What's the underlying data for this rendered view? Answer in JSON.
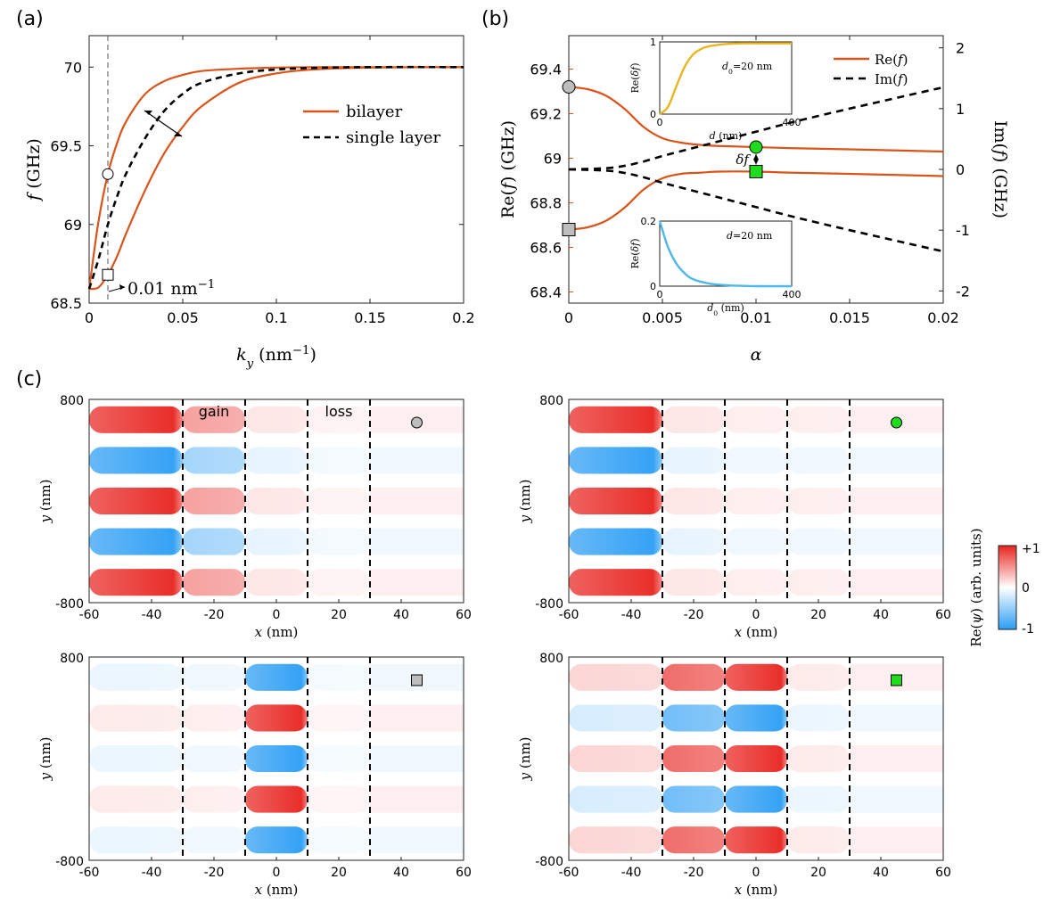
{
  "colors": {
    "bilayer": "#d9541a",
    "single": "#000000",
    "red": "#e8231e",
    "blue": "#2a9df4",
    "inset_yellow": "#ebb51e",
    "inset_cyan": "#4db8e8",
    "gray_marker": "#bdbdbd",
    "green_marker": "#1fdc1f",
    "re_axis_color": "#d9541a"
  },
  "panel_labels": {
    "a": "(a)",
    "b": "(b)",
    "c": "(c)"
  },
  "chart_data": [
    {
      "id": "a",
      "type": "line",
      "xlabel": "k_y (nm^-1)",
      "ylabel": "f (GHz)",
      "xlim": [
        0,
        0.2
      ],
      "ylim": [
        68.5,
        70.2
      ],
      "xticks": [
        0,
        0.05,
        0.1,
        0.15,
        0.2
      ],
      "xtick_labels": [
        "0",
        "0.05",
        "0.1",
        "0.15",
        "0.2"
      ],
      "yticks": [
        68.5,
        69,
        69.5,
        70
      ],
      "ytick_labels": [
        "68.5",
        "69",
        "69.5",
        "70"
      ],
      "series": [
        {
          "name": "bilayer",
          "style": "solid",
          "color": "#d9541a",
          "x": [
            0,
            0.005,
            0.01,
            0.015,
            0.02,
            0.03,
            0.04,
            0.05,
            0.06,
            0.08,
            0.1,
            0.12,
            0.15,
            0.2
          ],
          "y": [
            68.59,
            69.02,
            69.32,
            69.52,
            69.66,
            69.83,
            69.91,
            69.95,
            69.975,
            69.99,
            69.997,
            70.0,
            70.0,
            70.0
          ]
        },
        {
          "name": "bilayer",
          "style": "solid",
          "color": "#d9541a",
          "x": [
            0,
            0.005,
            0.01,
            0.015,
            0.02,
            0.03,
            0.04,
            0.05,
            0.06,
            0.08,
            0.1,
            0.12,
            0.15,
            0.2
          ],
          "y": [
            68.59,
            68.6,
            68.68,
            68.8,
            68.95,
            69.22,
            69.45,
            69.62,
            69.75,
            69.9,
            69.96,
            69.985,
            69.997,
            70.0
          ]
        },
        {
          "name": "single layer",
          "style": "dashed",
          "color": "#000000",
          "x": [
            0,
            0.005,
            0.01,
            0.015,
            0.02,
            0.03,
            0.04,
            0.05,
            0.06,
            0.08,
            0.1,
            0.12,
            0.15,
            0.2
          ],
          "y": [
            68.59,
            68.78,
            69.0,
            69.18,
            69.33,
            69.55,
            69.72,
            69.83,
            69.9,
            69.96,
            69.985,
            69.995,
            70.0,
            70.0
          ]
        }
      ],
      "markers": [
        {
          "shape": "circle",
          "x": 0.01,
          "y": 69.32,
          "color": "#ffffff"
        },
        {
          "shape": "square",
          "x": 0.01,
          "y": 68.68,
          "color": "#ffffff"
        }
      ],
      "vline_x": 0.01,
      "annotation": "0.01 nm^-1",
      "legend": [
        "bilayer",
        "single layer"
      ]
    },
    {
      "id": "b",
      "type": "line",
      "xlabel": "α",
      "ylabel_left": "Re(f) (GHz)",
      "ylabel_right": "Im(f) (GHz)",
      "xlim": [
        0,
        0.02
      ],
      "ylim_left": [
        68.35,
        69.55
      ],
      "ylim_right": [
        -2.2,
        2.2
      ],
      "xticks": [
        0,
        0.005,
        0.01,
        0.015,
        0.02
      ],
      "xtick_labels": [
        "0",
        "0.005",
        "0.01",
        "0.015",
        "0.02"
      ],
      "yticks_left": [
        68.4,
        68.6,
        68.8,
        69,
        69.2,
        69.4
      ],
      "ytick_labels_left": [
        "68.4",
        "68.6",
        "68.8",
        "69",
        "69.2",
        "69.4"
      ],
      "yticks_right": [
        -2,
        -1,
        0,
        1,
        2
      ],
      "ytick_labels_right": [
        "-2",
        "-1",
        "0",
        "1",
        "2"
      ],
      "series": [
        {
          "name": "Re(f)",
          "axis": "left",
          "style": "solid",
          "color": "#d9541a",
          "x": [
            0,
            0.001,
            0.002,
            0.003,
            0.004,
            0.005,
            0.006,
            0.007,
            0.008,
            0.01,
            0.012,
            0.015,
            0.02
          ],
          "y": [
            69.32,
            69.31,
            69.28,
            69.22,
            69.14,
            69.09,
            69.07,
            69.06,
            69.055,
            69.05,
            69.045,
            69.04,
            69.03
          ]
        },
        {
          "name": "Re(f)",
          "axis": "left",
          "style": "solid",
          "color": "#d9541a",
          "x": [
            0,
            0.001,
            0.002,
            0.003,
            0.004,
            0.005,
            0.006,
            0.007,
            0.008,
            0.01,
            0.012,
            0.015,
            0.02
          ],
          "y": [
            68.68,
            68.69,
            68.72,
            68.78,
            68.86,
            68.91,
            68.93,
            68.935,
            68.94,
            68.94,
            68.935,
            68.93,
            68.92
          ]
        },
        {
          "name": "Im(f)",
          "axis": "right",
          "style": "dashed",
          "color": "#000000",
          "x": [
            0,
            0.002,
            0.003,
            0.004,
            0.005,
            0.006,
            0.008,
            0.01,
            0.012,
            0.015,
            0.02
          ],
          "y": [
            0,
            0.02,
            0.06,
            0.13,
            0.22,
            0.3,
            0.46,
            0.62,
            0.78,
            1.0,
            1.35
          ]
        },
        {
          "name": "Im(f)",
          "axis": "right",
          "style": "dashed",
          "color": "#000000",
          "x": [
            0,
            0.002,
            0.003,
            0.004,
            0.005,
            0.006,
            0.008,
            0.01,
            0.012,
            0.015,
            0.02
          ],
          "y": [
            0,
            -0.02,
            -0.06,
            -0.13,
            -0.22,
            -0.3,
            -0.46,
            -0.62,
            -0.78,
            -1.0,
            -1.35
          ]
        }
      ],
      "markers": [
        {
          "shape": "circle",
          "x": 0,
          "y": 69.32,
          "color": "#bdbdbd"
        },
        {
          "shape": "square",
          "x": 0,
          "y": 68.68,
          "color": "#bdbdbd"
        },
        {
          "shape": "circle",
          "x": 0.01,
          "y": 69.05,
          "color": "#1fdc1f"
        },
        {
          "shape": "square",
          "x": 0.01,
          "y": 68.94,
          "color": "#1fdc1f"
        }
      ],
      "delta_label": "δf",
      "legend": [
        "Re(f)",
        "Im(f)"
      ],
      "insets": [
        {
          "id": "b-inset-top",
          "xlabel": "d (nm)",
          "ylabel": "Re(δf)",
          "xlim": [
            0,
            400
          ],
          "ylim": [
            0,
            1
          ],
          "xticks": [
            0,
            400
          ],
          "xtick_labels": [
            "0",
            "400"
          ],
          "yticks": [
            0,
            1
          ],
          "ytick_labels": [
            "0",
            "1"
          ],
          "label": "d_0=20 nm",
          "color": "#ebb51e",
          "x": [
            0,
            25,
            50,
            75,
            100,
            125,
            150,
            200,
            250,
            300,
            400
          ],
          "y": [
            0,
            0.1,
            0.38,
            0.65,
            0.82,
            0.9,
            0.94,
            0.97,
            0.98,
            0.98,
            0.98
          ]
        },
        {
          "id": "b-inset-bottom",
          "xlabel": "d_0 (nm)",
          "ylabel": "Re(δf)",
          "xlim": [
            0,
            400
          ],
          "ylim": [
            0,
            0.2
          ],
          "xticks": [
            0,
            400
          ],
          "xtick_labels": [
            "0",
            "400"
          ],
          "yticks": [
            0,
            0.2
          ],
          "ytick_labels": [
            "0",
            "0.2"
          ],
          "label": "d=20 nm",
          "color": "#4db8e8",
          "x": [
            0,
            25,
            50,
            75,
            100,
            150,
            200,
            250,
            300,
            400
          ],
          "y": [
            0.2,
            0.12,
            0.07,
            0.04,
            0.022,
            0.008,
            0.003,
            0.001,
            0.0,
            0.0
          ]
        }
      ]
    },
    {
      "id": "c",
      "type": "heatmap",
      "xlabel": "x (nm)",
      "ylabel": "y (nm)",
      "xlim": [
        -60,
        60
      ],
      "ylim": [
        -800,
        800
      ],
      "xticks": [
        -60,
        -40,
        -20,
        0,
        20,
        40,
        60
      ],
      "xtick_labels": [
        "-60",
        "-40",
        "-20",
        "0",
        "20",
        "40",
        "60"
      ],
      "ytick_labels": [
        "-800",
        "800"
      ],
      "boundaries_x": [
        -30,
        -10,
        10,
        30
      ],
      "region_labels": [
        "gain",
        "loss"
      ],
      "colorbar": {
        "label": "Re(ψ) (arb. units)",
        "ticks": [
          "+1",
          "0",
          "-1"
        ]
      },
      "maps": [
        {
          "id": "c-tl",
          "marker": "circle",
          "marker_color": "#bdbdbd",
          "layer_amp": [
            1.0,
            0.45,
            0.12,
            0.06
          ],
          "phase": 0,
          "peak_x": -33
        },
        {
          "id": "c-tr",
          "marker": "circle",
          "marker_color": "#1fdc1f",
          "layer_amp": [
            1.0,
            0.12,
            0.08,
            0.08
          ],
          "phase": 0,
          "peak_x": -33
        },
        {
          "id": "c-bl",
          "marker": "square",
          "marker_color": "#bdbdbd",
          "layer_amp": [
            0.1,
            0.08,
            1.0,
            0.05
          ],
          "phase": 1,
          "peak_x": 8
        },
        {
          "id": "c-br",
          "marker": "square",
          "marker_color": "#1fdc1f",
          "layer_amp": [
            0.2,
            0.7,
            1.0,
            0.1
          ],
          "phase": 0,
          "peak_x": 8
        }
      ]
    }
  ]
}
